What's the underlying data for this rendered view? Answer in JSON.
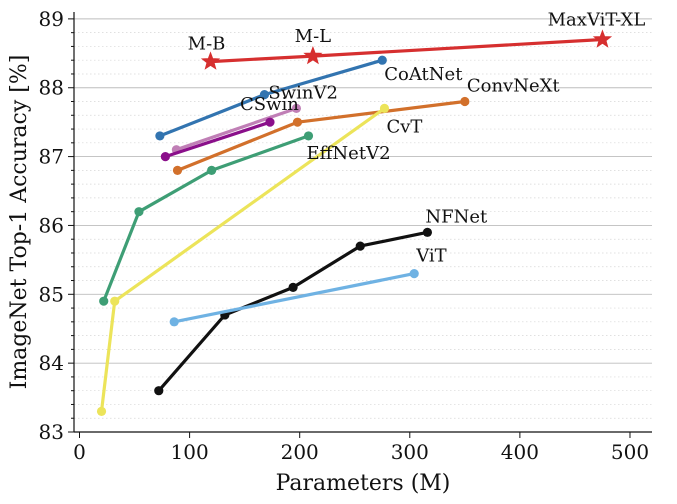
{
  "chart_data": {
    "type": "line",
    "title": "",
    "xlabel": "Parameters (M)",
    "ylabel": "ImageNet Top-1 Accuracy [%]",
    "xlim": [
      -5,
      520
    ],
    "ylim": [
      83,
      89.1
    ],
    "xticks": [
      0,
      100,
      200,
      300,
      400,
      500
    ],
    "yticks": [
      83,
      84,
      85,
      86,
      87,
      88,
      89
    ],
    "grid": "horizontal-dotted",
    "legend": "none (series labeled inline)",
    "series": [
      {
        "name": "MaxViT-XL",
        "color": "#d62f2f",
        "marker": "star",
        "x": [
          119,
          212,
          475
        ],
        "y": [
          88.38,
          88.46,
          88.7
        ],
        "point_labels": [
          "M-B",
          "M-L",
          "MaxViT-XL"
        ]
      },
      {
        "name": "CoAtNet",
        "color": "#3274b0",
        "marker": "circle",
        "x": [
          73,
          168,
          275
        ],
        "y": [
          87.3,
          87.9,
          88.4
        ]
      },
      {
        "name": "ConvNeXt",
        "color": "#d2702b",
        "marker": "circle",
        "x": [
          89,
          198,
          350
        ],
        "y": [
          86.8,
          87.5,
          87.8
        ]
      },
      {
        "name": "SwinV2",
        "color": "#c07fb6",
        "marker": "circle",
        "x": [
          88,
          197
        ],
        "y": [
          87.1,
          87.7
        ]
      },
      {
        "name": "CSwin",
        "color": "#8a0f8a",
        "marker": "circle",
        "x": [
          78,
          173
        ],
        "y": [
          87.0,
          87.5
        ]
      },
      {
        "name": "EffNetV2",
        "color": "#3e9e75",
        "marker": "circle",
        "x": [
          22,
          54,
          120,
          208
        ],
        "y": [
          84.9,
          86.2,
          86.8,
          87.3
        ]
      },
      {
        "name": "CvT",
        "color": "#ece45a",
        "marker": "circle",
        "x": [
          20,
          32,
          277
        ],
        "y": [
          83.3,
          84.9,
          87.7
        ]
      },
      {
        "name": "NFNet",
        "color": "#111111",
        "marker": "circle",
        "x": [
          72,
          132,
          194,
          255,
          316
        ],
        "y": [
          83.6,
          84.7,
          85.1,
          85.7,
          85.9
        ]
      },
      {
        "name": "ViT",
        "color": "#6fb2e3",
        "marker": "circle",
        "x": [
          86,
          304
        ],
        "y": [
          84.6,
          85.3
        ]
      }
    ]
  }
}
